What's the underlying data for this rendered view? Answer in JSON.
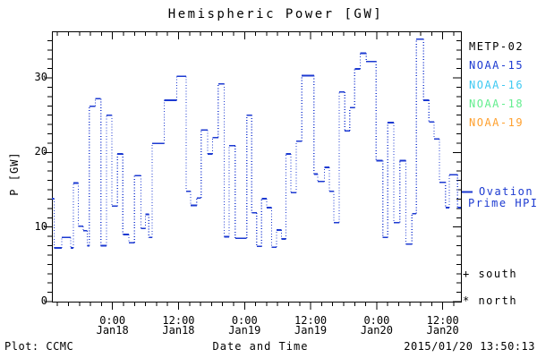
{
  "page": {
    "title": "Hemispheric Power [GW]"
  },
  "axes": {
    "y_label": "P [GW]",
    "x_label": "Date and Time",
    "y_major_ticks": [
      0,
      10,
      20,
      30
    ],
    "y_minor_step": 1.25,
    "y_max": 36.3,
    "x_total_hours": 74.3,
    "x_minor_step_hours": 2,
    "x_major_hours": [
      11,
      23,
      35,
      47,
      59,
      71
    ],
    "x_tick_labels": [
      {
        "time": "0:00",
        "date": "Jan18"
      },
      {
        "time": "12:00",
        "date": "Jan18"
      },
      {
        "time": "0:00",
        "date": "Jan19"
      },
      {
        "time": "12:00",
        "date": "Jan19"
      },
      {
        "time": "0:00",
        "date": "Jan20"
      },
      {
        "time": "12:00",
        "date": "Jan20"
      }
    ]
  },
  "legend": {
    "satellites": [
      {
        "label": "METP-02",
        "color": "#000000"
      },
      {
        "label": "NOAA-15",
        "color": "#1c3ad1"
      },
      {
        "label": "NOAA-16",
        "color": "#3ec9f2"
      },
      {
        "label": "NOAA-18",
        "color": "#62ee8e"
      },
      {
        "label": "NOAA-19",
        "color": "#ffa02e"
      }
    ],
    "ovation_line1": "Ovation",
    "ovation_line2": "Prime HPI",
    "south": "+ south",
    "north": "* north"
  },
  "footer": {
    "left": "Plot: CCMC",
    "right": "2015/01/20 13:50:13"
  },
  "colors": {
    "trace": "#1c3ad1",
    "frame": "#000000",
    "background": "#ffffff"
  },
  "chart_data": {
    "type": "line",
    "subtype": "step-plot, solid horizontal levels with dotted vertical connectors",
    "title": "Hemispheric Power [GW]",
    "xlabel": "Date and Time",
    "ylabel": "P [GW]",
    "ylim": [
      0,
      36.3
    ],
    "grid": false,
    "legend_position": "right",
    "x_unit": "hours from plot left edge; hour 11 = Jan18 0:00, 12 h between labeled ticks",
    "x_range_hours": [
      0,
      74.3
    ],
    "x_tick_hours": [
      11,
      23,
      35,
      47,
      59,
      71
    ],
    "x_tick_labels": [
      "0:00 Jan18",
      "12:00 Jan18",
      "0:00 Jan19",
      "12:00 Jan19",
      "0:00 Jan20",
      "12:00 Jan20"
    ],
    "series": [
      {
        "name": "Ovation Prime HPI",
        "color": "#1c3ad1",
        "steps": [
          [
            0.0,
            13.8
          ],
          [
            0.4,
            7.2
          ],
          [
            1.8,
            8.6
          ],
          [
            3.4,
            7.2
          ],
          [
            3.9,
            15.9
          ],
          [
            4.8,
            10.1
          ],
          [
            5.7,
            9.5
          ],
          [
            6.4,
            7.5
          ],
          [
            6.8,
            26.2
          ],
          [
            7.9,
            27.2
          ],
          [
            8.9,
            7.5
          ],
          [
            9.9,
            25.0
          ],
          [
            10.9,
            12.8
          ],
          [
            11.9,
            19.8
          ],
          [
            12.9,
            9.0
          ],
          [
            14.0,
            7.9
          ],
          [
            15.0,
            16.9
          ],
          [
            16.2,
            9.8
          ],
          [
            17.0,
            11.7
          ],
          [
            17.6,
            8.6
          ],
          [
            18.2,
            21.2
          ],
          [
            20.4,
            27.0
          ],
          [
            22.7,
            30.2
          ],
          [
            24.4,
            14.8
          ],
          [
            25.2,
            12.9
          ],
          [
            26.3,
            13.9
          ],
          [
            27.1,
            23.0
          ],
          [
            28.3,
            19.8
          ],
          [
            29.2,
            22.0
          ],
          [
            30.2,
            29.2
          ],
          [
            31.3,
            8.7
          ],
          [
            32.2,
            20.9
          ],
          [
            33.3,
            8.5
          ],
          [
            35.4,
            25.0
          ],
          [
            36.3,
            11.9
          ],
          [
            37.2,
            7.4
          ],
          [
            38.1,
            13.8
          ],
          [
            39.0,
            12.6
          ],
          [
            39.9,
            7.3
          ],
          [
            40.8,
            9.6
          ],
          [
            41.7,
            8.4
          ],
          [
            42.5,
            19.8
          ],
          [
            43.4,
            14.6
          ],
          [
            44.4,
            21.5
          ],
          [
            45.4,
            30.3
          ],
          [
            47.6,
            17.1
          ],
          [
            48.3,
            16.1
          ],
          [
            49.5,
            18.0
          ],
          [
            50.4,
            14.8
          ],
          [
            51.2,
            10.6
          ],
          [
            52.2,
            28.1
          ],
          [
            53.2,
            22.9
          ],
          [
            54.1,
            26.0
          ],
          [
            55.0,
            31.2
          ],
          [
            56.0,
            33.3
          ],
          [
            57.1,
            32.2
          ],
          [
            58.9,
            18.9
          ],
          [
            60.1,
            8.6
          ],
          [
            61.0,
            24.0
          ],
          [
            62.1,
            10.6
          ],
          [
            63.2,
            18.9
          ],
          [
            64.3,
            7.7
          ],
          [
            65.4,
            11.8
          ],
          [
            66.2,
            35.2
          ],
          [
            67.5,
            27.0
          ],
          [
            68.5,
            24.1
          ],
          [
            69.4,
            21.8
          ],
          [
            70.4,
            16.0
          ],
          [
            71.5,
            12.6
          ],
          [
            72.2,
            17.0
          ],
          [
            73.7,
            12.6
          ]
        ]
      }
    ]
  }
}
